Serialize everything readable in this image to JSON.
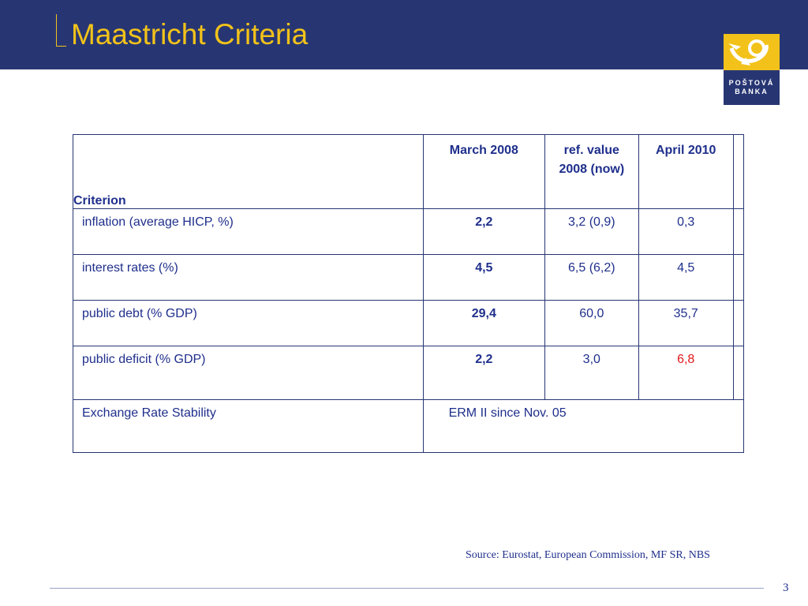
{
  "slide": {
    "title": "Maastricht Criteria",
    "page_number": "3",
    "source": "Source: Eurostat, European Commission, MF SR, NBS"
  },
  "logo": {
    "line1": "POŠTOVÁ",
    "line2": "BANKA"
  },
  "colors": {
    "header_bg": "#273673",
    "title": "#f2c21a",
    "text": "#1f2f8c",
    "highlight": "#e3181a"
  },
  "table": {
    "headers": {
      "criterion": "Criterion",
      "march2008": "March 2008",
      "ref_value_line1": "ref. value",
      "ref_value_line2": "2008 (now)",
      "april2010": "April 2010"
    },
    "rows": [
      {
        "label": "inflation (average HICP, %)",
        "march2008": "2,2",
        "ref": "3,2 (0,9)",
        "april2010": "0,3"
      },
      {
        "label": "interest rates (%)",
        "march2008": "4,5",
        "ref": "6,5 (6,2)",
        "april2010": "4,5"
      },
      {
        "label": "public debt (% GDP)",
        "march2008": "29,4",
        "ref": "60,0",
        "april2010": "35,7"
      },
      {
        "label": "public deficit (% GDP)",
        "march2008": "2,2",
        "ref": "3,0",
        "april2010": "6,8"
      }
    ],
    "erm": {
      "label": "Exchange Rate Stability",
      "value": "ERM II since Nov. 05"
    }
  }
}
